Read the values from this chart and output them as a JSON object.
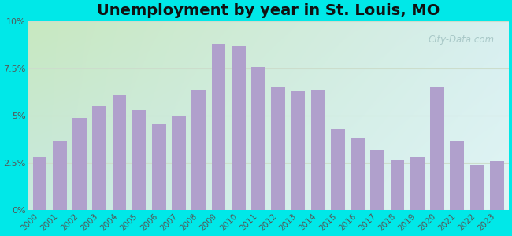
{
  "title": "Unemployment by year in St. Louis, MO",
  "years": [
    2000,
    2001,
    2002,
    2003,
    2004,
    2005,
    2006,
    2007,
    2008,
    2009,
    2010,
    2011,
    2012,
    2013,
    2014,
    2015,
    2016,
    2017,
    2018,
    2019,
    2020,
    2021,
    2022,
    2023
  ],
  "values": [
    2.8,
    3.7,
    4.9,
    5.5,
    6.1,
    5.3,
    4.6,
    5.0,
    6.4,
    8.8,
    8.7,
    7.6,
    6.5,
    6.3,
    6.4,
    4.3,
    3.8,
    3.2,
    2.7,
    2.8,
    6.5,
    3.7,
    2.4,
    2.6
  ],
  "bar_color": "#b0a0cc",
  "background_outer": "#00e8e8",
  "background_tl": "#c8e8c0",
  "background_tr": "#d8eff0",
  "background_bl": "#c8e8e0",
  "background_br": "#e0f5f5",
  "ylim": [
    0,
    10
  ],
  "yticks": [
    0,
    2.5,
    5.0,
    7.5,
    10.0
  ],
  "ytick_labels": [
    "0%",
    "2.5%",
    "5%",
    "7.5%",
    "10%"
  ],
  "grid_color": "#ccddcc",
  "title_fontsize": 14,
  "tick_fontsize": 7.5,
  "watermark": "City-Data.com"
}
